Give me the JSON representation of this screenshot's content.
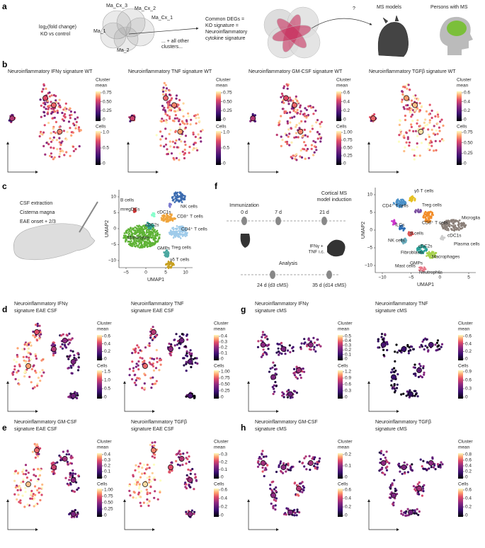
{
  "panel_a": {
    "label": "a",
    "fold_change": {
      "log": "log",
      "sub": "2",
      "rest": "(fold change)"
    },
    "comparison": "KO vs control",
    "clusters": [
      "Ma_Cx_3",
      "Ma_Cx_2",
      "Ma_Cx_1",
      "Ma_1",
      "Ma_2"
    ],
    "other_clusters": [
      "... + all other",
      "clusters..."
    ],
    "signature": [
      "Common DEGs =",
      "KO signature =",
      "Neuroinflammatory",
      "cytokine signature"
    ],
    "question": "?",
    "models": "MS models",
    "persons": "Persons with MS"
  },
  "panel_labels": [
    "b",
    "c",
    "d",
    "e",
    "f",
    "g",
    "h"
  ],
  "feature_plots": [
    {
      "title": [
        "Neuroinflammatory IFNγ signature WT"
      ],
      "cluster_label": [
        "Cluster",
        "mean"
      ],
      "cluster_ticks": [
        "0.75",
        "0.50",
        "0.25",
        "0"
      ],
      "cells_label": "Cells",
      "cells_ticks": [
        "1.0",
        "0.5",
        "0"
      ]
    },
    {
      "title": [
        "Neuroinflammatory TNF signature WT"
      ],
      "cluster_label": [
        "Cluster",
        "mean"
      ],
      "cluster_ticks": [
        "0.75",
        "0.50",
        "0.25",
        "0"
      ],
      "cells_label": "Cells",
      "cells_ticks": [
        "1.0",
        "0.5",
        "0"
      ]
    },
    {
      "title": [
        "Neuroinflammatory GM-CSF signature WT"
      ],
      "cluster_label": [
        "Cluster",
        "mean"
      ],
      "cluster_ticks": [
        "0.6",
        "0.4",
        "0.2",
        "0"
      ],
      "cells_label": "Cells",
      "cells_ticks": [
        "1.00",
        "0.75",
        "0.50",
        "0.25",
        "0"
      ]
    },
    {
      "title": [
        "Neuroinflammatory TGFβ signature WT"
      ],
      "cluster_label": [
        "Cluster",
        "mean"
      ],
      "cluster_ticks": [
        "0.6",
        "0.4",
        "0.2",
        "0"
      ],
      "cells_label": "Cells",
      "cells_ticks": [
        "0.75",
        "0.50",
        "0.25",
        "0"
      ]
    },
    {
      "title": [
        "Neuroinflammatory IFNγ",
        "signature EAE CSF"
      ],
      "cluster_label": [
        "Cluster",
        "mean"
      ],
      "cluster_ticks": [
        "0.6",
        "0.4",
        "0.2",
        "0"
      ],
      "cells_label": "Cells",
      "cells_ticks": [
        "1.5",
        "1.0",
        "0.5",
        "0"
      ]
    },
    {
      "title": [
        "Neuroinflammatory TNF",
        "signature EAE CSF"
      ],
      "cluster_label": [
        "Cluster",
        "mean"
      ],
      "cluster_ticks": [
        "0.4",
        "0.3",
        "0.2",
        "0.1",
        "0"
      ],
      "cells_label": "Cells",
      "cells_ticks": [
        "1.00",
        "0.75",
        "0.50",
        "0.25",
        "0"
      ]
    },
    {
      "title": [
        "Neuroinflammatory GM-CSF",
        "signature EAE CSF"
      ],
      "cluster_label": [
        "Cluster",
        "mean"
      ],
      "cluster_ticks": [
        "0.4",
        "0.3",
        "0.2",
        "0.1",
        "0"
      ],
      "cells_label": "Cells",
      "cells_ticks": [
        "1.00",
        "0.75",
        "0.50",
        "0.25",
        "0"
      ]
    },
    {
      "title": [
        "Neuroinflammatory TGFβ",
        "signature EAE CSF"
      ],
      "cluster_label": [
        "Cluster",
        "mean"
      ],
      "cluster_ticks": [
        "0.3",
        "0.2",
        "0.1",
        "0"
      ],
      "cells_label": "Cells",
      "cells_ticks": [
        "0.6",
        "0.4",
        "0.2",
        "0"
      ]
    },
    {
      "title": [
        "Neuroinflammatory IFNγ",
        "signature cMS"
      ],
      "cluster_label": [
        "Cluster",
        "mean"
      ],
      "cluster_ticks": [
        "0.5",
        "0.4",
        "0.3",
        "0.2",
        "0.1",
        "0"
      ],
      "cells_label": "Cells",
      "cells_ticks": [
        "1.2",
        "0.9",
        "0.6",
        "0.3",
        "0"
      ]
    },
    {
      "title": [
        "Neuroinflammatory TNF",
        "signature cMS"
      ],
      "cluster_label": [
        "Cluster",
        "mean"
      ],
      "cluster_ticks": [
        "0.6",
        "0.4",
        "0.2",
        "0"
      ],
      "cells_label": "Cells",
      "cells_ticks": [
        "0.9",
        "0.6",
        "0.3",
        "0"
      ]
    },
    {
      "title": [
        "Neuroinflammatory GM-CSF",
        "signature cMS"
      ],
      "cluster_label": [
        "Cluster",
        "mean"
      ],
      "cluster_ticks": [
        "0.2",
        "0.1",
        "0"
      ],
      "cells_label": "Cells",
      "cells_ticks": [
        "0.6",
        "0.4",
        "0.2",
        "0"
      ]
    },
    {
      "title": [
        "Neuroinflammatory TGFβ",
        "signature cMS"
      ],
      "cluster_label": [
        "Cluster",
        "mean"
      ],
      "cluster_ticks": [
        "0.8",
        "0.6",
        "0.4",
        "0.2",
        "0"
      ],
      "cells_label": "Cells",
      "cells_ticks": [
        "0.6",
        "0.4",
        "0.2",
        "0"
      ]
    }
  ],
  "panel_c": {
    "steps": [
      "CSF extraction",
      "Cisterna magna",
      "EAE onset + 2/3"
    ],
    "umap": {
      "xlabel": "UMAP1",
      "ylabel": "UMAP2",
      "xticks": [
        "−5",
        "0",
        "5",
        "10"
      ],
      "yticks": [
        "10",
        "5",
        "0",
        "−5",
        "−10"
      ],
      "clusters": [
        "B cells",
        "mregDCs",
        "cDC1s",
        "cDC2s",
        "Monocytes",
        "GMPs",
        "NK cells",
        "CD8⁺ T cells",
        "CD4⁺ T cells",
        "Treg cells",
        "γδ T cells"
      ]
    }
  },
  "panel_f": {
    "induction": [
      "Cortical MS",
      "model induction"
    ],
    "immunization": "Immunization",
    "days": [
      "0 d",
      "7 d",
      "21 d"
    ],
    "injection": [
      "IFNγ +",
      "TNF i.c."
    ],
    "analysis": "Analysis",
    "timepoints": [
      "24 d (d3 cMS)",
      "35 d (d14 cMS)"
    ],
    "umap": {
      "xlabel": "UMAP1",
      "ylabel": "UMAP2",
      "xticks": [
        "−10",
        "−5",
        "0",
        "5"
      ],
      "yticks": [
        "10",
        "5",
        "0",
        "−5",
        "−10"
      ],
      "clusters": [
        "γδ T cells",
        "CD4⁺ T cells",
        "Treg cells",
        "Microglia",
        "CD8⁺ T cells",
        "ILCs",
        "B cells",
        "cDC1s",
        "Plasma cells",
        "NK cells",
        "Fibroblasts",
        "cDC2s",
        "Macrophages",
        "Mast cells",
        "GMPs",
        "Neutrophils"
      ]
    }
  }
}
